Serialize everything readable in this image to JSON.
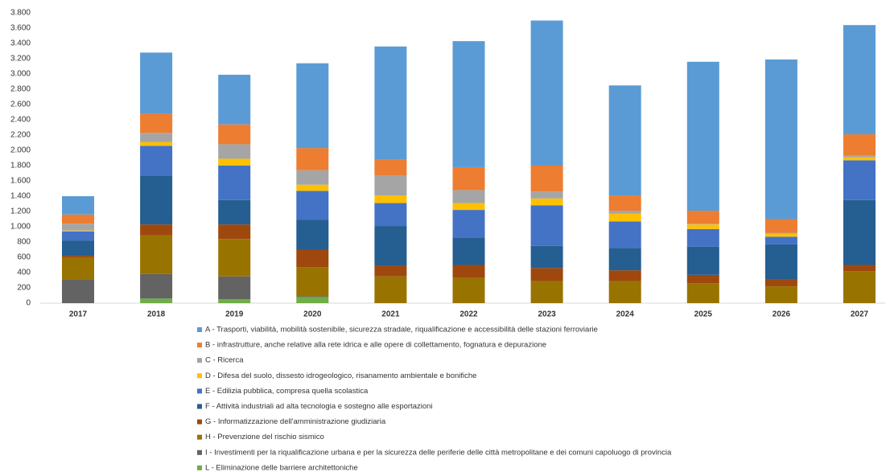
{
  "chart_data": {
    "type": "stacked_bar",
    "categories": [
      "2017",
      "2018",
      "2019",
      "2020",
      "2021",
      "2022",
      "2023",
      "2024",
      "2025",
      "2026",
      "2027"
    ],
    "series": [
      {
        "name": "A - Trasporti, viabilità, mobilità sostenibile, sicurezza stradale, riqualificazione e accessibilità delle stazioni ferroviarie",
        "color": "#5b9bd5",
        "values": [
          240,
          800,
          650,
          1110,
          1480,
          1650,
          1900,
          1440,
          1950,
          2090,
          1430
        ]
      },
      {
        "name": "B - infrastrutture, anche relative alla rete idrica e alle opere di collettamento, fognatura e depurazione",
        "color": "#ed7d31",
        "values": [
          120,
          250,
          260,
          290,
          210,
          300,
          340,
          200,
          170,
          180,
          280
        ]
      },
      {
        "name": "C - Ricerca",
        "color": "#a5a5a5",
        "values": [
          90,
          120,
          190,
          190,
          260,
          170,
          90,
          40,
          10,
          10,
          20
        ]
      },
      {
        "name": "D - Difesa del suolo, dissesto idrogeologico, risanamento ambientale e bonifiche",
        "color": "#ffc000",
        "values": [
          10,
          50,
          90,
          80,
          100,
          90,
          90,
          100,
          60,
          40,
          40
        ]
      },
      {
        "name": "E - Edilizia pubblica, compresa quella scolastica",
        "color": "#4472c4",
        "values": [
          120,
          390,
          450,
          380,
          300,
          360,
          530,
          350,
          230,
          100,
          520
        ]
      },
      {
        "name": "F - Attività industriali ad alta tecnologia e sostegno alle esportazioni",
        "color": "#255e91",
        "values": [
          200,
          640,
          320,
          390,
          520,
          360,
          290,
          290,
          370,
          460,
          850
        ]
      },
      {
        "name": "G - Informatizzazione dell'amministrazione giudiziaria",
        "color": "#9e480e",
        "values": [
          20,
          140,
          190,
          230,
          140,
          170,
          170,
          140,
          110,
          90,
          80
        ]
      },
      {
        "name": "H - Prevenzione del rischio sismico",
        "color": "#997300",
        "values": [
          290,
          510,
          490,
          380,
          350,
          330,
          290,
          290,
          260,
          220,
          420
        ]
      },
      {
        "name": "I - Investimenti per la riqualificazione urbana e per la sicurezza delle periferie delle città metropolitane e dei comuni capoluogo di provincia",
        "color": "#636363",
        "values": [
          310,
          320,
          300,
          10,
          0,
          0,
          0,
          0,
          0,
          0,
          0
        ]
      },
      {
        "name": "L - Eliminazione delle barriere architettoniche",
        "color": "#70ad47",
        "values": [
          0,
          60,
          50,
          80,
          0,
          0,
          0,
          0,
          0,
          0,
          0
        ]
      }
    ],
    "ylim": [
      0,
      3800
    ],
    "yticks": [
      0,
      200,
      400,
      600,
      800,
      {
        "value": 1000,
        "label": "1.000"
      },
      {
        "value": 1200,
        "label": "1.200"
      },
      {
        "value": 1400,
        "label": "1.400"
      },
      {
        "value": 1600,
        "label": "1.600"
      },
      {
        "value": 1800,
        "label": "1.800"
      },
      {
        "value": 2000,
        "label": "2.000"
      },
      {
        "value": 2200,
        "label": "2.200"
      },
      {
        "value": 2400,
        "label": "2.400"
      },
      {
        "value": 2600,
        "label": "2.600"
      },
      {
        "value": 2800,
        "label": "2.800"
      },
      {
        "value": 3000,
        "label": "3.000"
      },
      {
        "value": 3200,
        "label": "3.200"
      },
      {
        "value": 3400,
        "label": "3.400"
      },
      {
        "value": 3600,
        "label": "3.600"
      },
      {
        "value": 3800,
        "label": "3.800"
      }
    ],
    "grid": false
  }
}
